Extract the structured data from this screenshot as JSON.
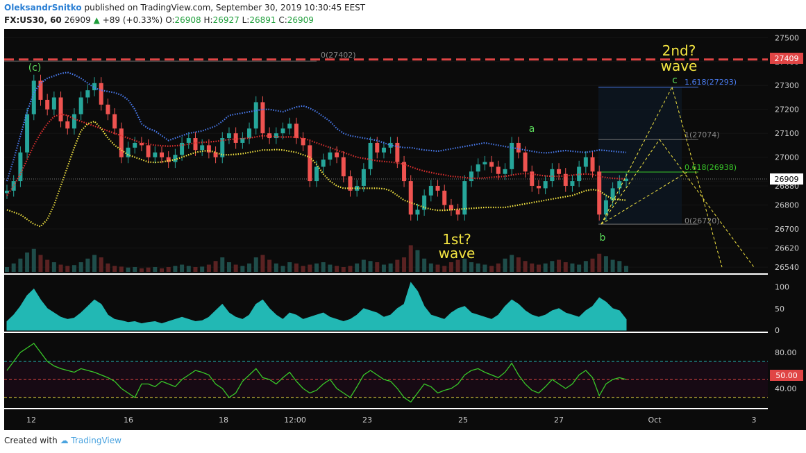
{
  "header": {
    "author": "OleksandrSnitko",
    "published": "published on TradingView.com, September 30, 2019 10:30:45 EEST",
    "symbol": "FX:US30, 60",
    "last": "26909",
    "change": "+89 (+0.33%)",
    "o_label": "O:",
    "o_val": "26908",
    "h_label": "H:",
    "h_val": "26927",
    "l_label": "L:",
    "l_val": "26891",
    "c_label": "C:",
    "c_val": "26909"
  },
  "footer": {
    "created_with": "Created with",
    "brand": "TradingView"
  },
  "colors": {
    "bg": "#000000",
    "up": "#26a69a",
    "down": "#ef5350",
    "upper_band": "#4a7cf0",
    "mid": "#e03030",
    "lower_band": "#f5e642",
    "volume_area": "#1a3a5a",
    "cyan": "#22b8b4",
    "rsi": "#39c929",
    "resistance": "#e04545",
    "fib_blue": "#4a7cf0",
    "fib_green": "#39c929",
    "annot": "#f5e642",
    "wave_green": "#5cdc5c"
  },
  "chart_data": [
    {
      "type": "line",
      "title": "",
      "x_ticks": [
        "12",
        "16",
        "18",
        "12:00",
        "23",
        "25",
        "27",
        "Oct",
        "3"
      ],
      "y_ticks": [
        27500,
        27400,
        27300,
        27200,
        27100,
        27000,
        26900,
        26880,
        26800,
        26700,
        26620,
        26540
      ],
      "ylim": [
        26520,
        27530
      ],
      "price_labels": {
        "resistance": "27409",
        "last": "26909"
      },
      "series": [
        {
          "name": "close",
          "values": [
            26860,
            26900,
            27020,
            27180,
            27320,
            27240,
            27200,
            27250,
            27150,
            27120,
            27180,
            27250,
            27280,
            27310,
            27220,
            27180,
            27120,
            27000,
            27040,
            27060,
            27050,
            27000,
            27020,
            27000,
            26980,
            27010,
            27060,
            27080,
            27030,
            27050,
            27020,
            27000,
            27080,
            27100,
            27060,
            27080,
            27120,
            27230,
            27100,
            27080,
            27100,
            27120,
            27140,
            27080,
            27050,
            26900,
            26960,
            26990,
            27020,
            27000,
            26920,
            26860,
            26880,
            26950,
            27060,
            27020,
            27040,
            27060,
            26980,
            26900,
            26760,
            26780,
            26840,
            26880,
            26860,
            26800,
            26780,
            26760,
            26900,
            26940,
            26970,
            26980,
            26960,
            26930,
            26950,
            27060,
            27020,
            26940,
            26880,
            26870,
            26900,
            26950,
            26930,
            26880,
            26900,
            26960,
            27000,
            26940,
            26760,
            26820,
            26870,
            26900,
            26910
          ]
        },
        {
          "name": "upper_band",
          "values": [
            26900,
            26990,
            27090,
            27190,
            27270,
            27310,
            27330,
            27340,
            27350,
            27355,
            27345,
            27330,
            27310,
            27290,
            27280,
            27275,
            27270,
            27260,
            27240,
            27200,
            27140,
            27120,
            27110,
            27090,
            27070,
            27080,
            27090,
            27100,
            27105,
            27110,
            27120,
            27130,
            27150,
            27175,
            27180,
            27185,
            27190,
            27195,
            27200,
            27200,
            27195,
            27190,
            27200,
            27210,
            27215,
            27205,
            27190,
            27170,
            27150,
            27120,
            27100,
            27090,
            27085,
            27080,
            27075,
            27070,
            27060,
            27050,
            27045,
            27040,
            27040,
            27035,
            27030,
            27028,
            27025,
            27030,
            27035,
            27040,
            27045,
            27050,
            27055,
            27060,
            27055,
            27050,
            27045,
            27040,
            27035,
            27030,
            27025,
            27020,
            27018,
            27020,
            27025,
            27028,
            27025,
            27022,
            27020,
            27025,
            27030,
            27028,
            27025,
            27022,
            27020
          ]
        },
        {
          "name": "middle",
          "values": [
            26840,
            26880,
            26930,
            26990,
            27050,
            27100,
            27140,
            27170,
            27180,
            27175,
            27160,
            27150,
            27140,
            27130,
            27120,
            27110,
            27100,
            27090,
            27080,
            27070,
            27060,
            27055,
            27050,
            27048,
            27046,
            27048,
            27050,
            27055,
            27060,
            27062,
            27064,
            27066,
            27070,
            27074,
            27076,
            27078,
            27080,
            27085,
            27090,
            27088,
            27086,
            27084,
            27085,
            27083,
            27080,
            27070,
            27060,
            27050,
            27040,
            27030,
            27020,
            27010,
            27000,
            26995,
            26990,
            26985,
            26982,
            26980,
            26976,
            26970,
            26960,
            26950,
            26942,
            26936,
            26930,
            26926,
            26920,
            26918,
            26915,
            26912,
            26912,
            26914,
            26916,
            26918,
            26920,
            26925,
            26930,
            26932,
            26930,
            26925,
            26922,
            26920,
            26920,
            26922,
            26925,
            26928,
            26930,
            26928,
            26920,
            26915,
            26912,
            26910,
            26910
          ]
        },
        {
          "name": "lower_band",
          "values": [
            26780,
            26770,
            26760,
            26740,
            26720,
            26710,
            26740,
            26800,
            26880,
            26960,
            27040,
            27110,
            27140,
            27150,
            27120,
            27080,
            27050,
            27030,
            27010,
            27000,
            26990,
            26980,
            26978,
            26980,
            26985,
            26990,
            27000,
            27010,
            27020,
            27025,
            27028,
            27020,
            27010,
            27010,
            27012,
            27015,
            27020,
            27025,
            27030,
            27030,
            27032,
            27030,
            27025,
            27020,
            27010,
            27000,
            26970,
            26930,
            26900,
            26880,
            26870,
            26870,
            26870,
            26870,
            26870,
            26870,
            26868,
            26860,
            26840,
            26820,
            26810,
            26800,
            26790,
            26782,
            26778,
            26778,
            26780,
            26782,
            26784,
            26786,
            26788,
            26790,
            26790,
            26790,
            26790,
            26795,
            26800,
            26805,
            26810,
            26815,
            26820,
            26825,
            26830,
            26835,
            26840,
            26850,
            26860,
            26865,
            26860,
            26840,
            26825,
            26822,
            26820
          ]
        },
        {
          "name": "volume_ind",
          "values": [
            20,
            35,
            55,
            80,
            95,
            70,
            50,
            40,
            30,
            25,
            28,
            40,
            55,
            70,
            60,
            35,
            25,
            22,
            18,
            20,
            15,
            18,
            20,
            15,
            20,
            25,
            30,
            25,
            20,
            22,
            30,
            45,
            60,
            40,
            30,
            25,
            35,
            60,
            70,
            50,
            35,
            25,
            40,
            35,
            25,
            30,
            35,
            40,
            30,
            25,
            20,
            25,
            35,
            50,
            45,
            40,
            30,
            35,
            50,
            60,
            110,
            90,
            55,
            35,
            30,
            25,
            40,
            50,
            55,
            40,
            35,
            30,
            25,
            35,
            55,
            70,
            60,
            45,
            35,
            30,
            35,
            45,
            50,
            40,
            35,
            30,
            45,
            55,
            75,
            65,
            50,
            45,
            25
          ]
        },
        {
          "name": "rsi",
          "values": [
            60,
            70,
            80,
            85,
            90,
            80,
            70,
            65,
            62,
            60,
            58,
            62,
            60,
            58,
            55,
            52,
            48,
            40,
            35,
            30,
            45,
            45,
            42,
            48,
            45,
            42,
            50,
            55,
            60,
            58,
            55,
            45,
            40,
            30,
            35,
            48,
            55,
            62,
            52,
            50,
            45,
            52,
            58,
            48,
            40,
            35,
            38,
            45,
            50,
            40,
            35,
            30,
            42,
            55,
            60,
            55,
            50,
            48,
            40,
            30,
            25,
            35,
            45,
            42,
            35,
            38,
            40,
            45,
            55,
            60,
            62,
            58,
            55,
            52,
            58,
            68,
            55,
            45,
            38,
            35,
            42,
            50,
            45,
            40,
            45,
            55,
            60,
            52,
            32,
            45,
            50,
            52,
            50
          ]
        }
      ],
      "annotations": {
        "wave_c": "(c)",
        "wave_a": "a",
        "wave_b": "b",
        "wave_c2": "c",
        "first_wave": "1st?",
        "first_wave2": "wave",
        "second_wave": "2nd?",
        "second_wave2": "wave",
        "fib_0_top": "0(27402)",
        "fib_1618": "1.618(27293)",
        "fib_1": "1(27074)",
        "fib_0618": "0.618(26938)",
        "fib_0": "0(26720)"
      }
    },
    {
      "type": "area",
      "y_ticks": [
        100,
        50,
        0
      ],
      "ylim": [
        0,
        125
      ]
    },
    {
      "type": "line",
      "y_ticks": [
        "80.00",
        "40.00"
      ],
      "label_50": "50.00",
      "ylim": [
        20,
        100
      ],
      "levels": [
        70,
        50,
        30
      ]
    }
  ]
}
